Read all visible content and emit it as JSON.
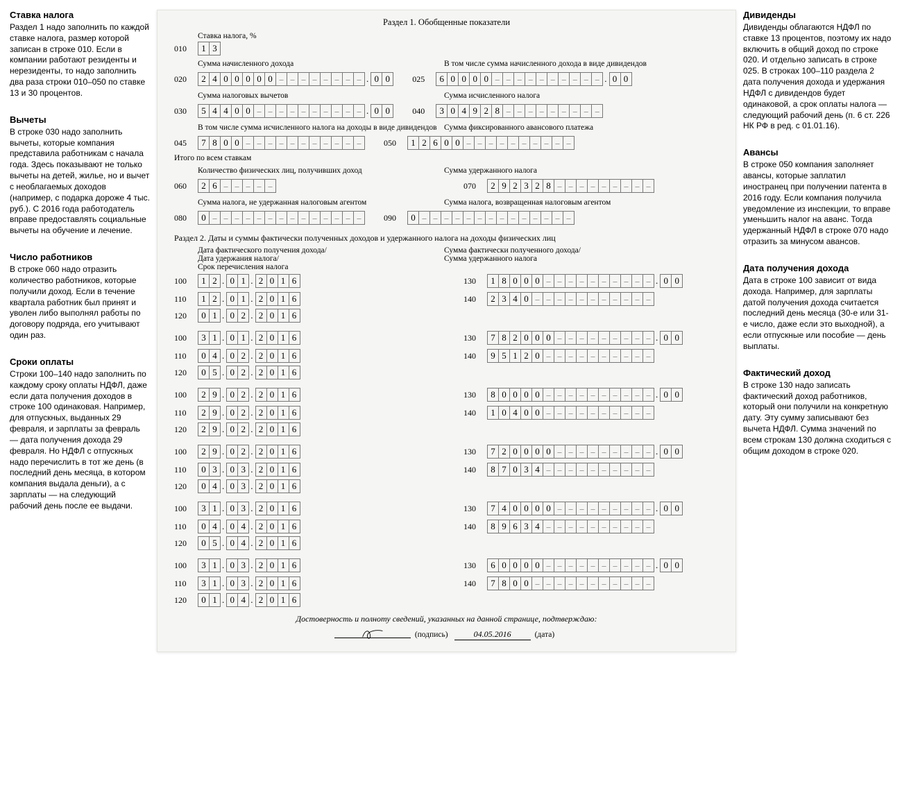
{
  "left_notes": [
    {
      "title": "Ставка налога",
      "body": "Раздел 1 надо заполнить по каждой ставке налога, размер которой записан в строке 010. Если в компании работают резиденты и нерезиденты, то надо заполнить два раза строки 010–050 по ставке 13 и 30 процентов."
    },
    {
      "title": "Вычеты",
      "body": "В строке 030 надо заполнить вычеты, которые компания представила работникам с начала года. Здесь показывают не только вычеты на детей, жилье, но и вычет с необлагаемых доходов (например, с подарка дороже 4 тыс. руб.). С 2016 года работодатель вправе предоставлять социальные вычеты на обучение и лечение."
    },
    {
      "title": "Число работников",
      "body": "В строке 060 надо отразить количество работников, которые получили доход. Если в течение квартала работник был принят и уволен либо выполнял работы по договору подряда, его учитывают один раз."
    },
    {
      "title": "Сроки оплаты",
      "body": "Строки 100–140 надо заполнить по каждому сроку оплаты НДФЛ, даже если дата получения доходов в строке 100 одинаковая. Например, для отпускных, выданных 29 февраля, и зарплаты за февраль — дата получения дохода 29 февраля. Но НДФЛ с отпускных надо перечислить в тот же день (в последний день месяца, в котором компания выдала деньги), а с зарплаты — на следующий рабочий день после ее выдачи."
    }
  ],
  "right_notes": [
    {
      "title": "Дивиденды",
      "body": "Дивиденды облагаются НДФЛ по ставке 13 процентов, поэтому их надо включить в общий доход по строке 020. И отдельно записать в строке 025. В строках 100–110 раздела 2 дата получения дохода и удержания НДФЛ с дивидендов будет одинаковой, а срок оплаты налога — следующий рабочий день (п. 6 ст. 226 НК РФ в ред. с 01.01.16)."
    },
    {
      "title": "Авансы",
      "body": "В строке 050 компания заполняет авансы, которые заплатил иностранец при получении патента в 2016 году. Если компания получила уведомление из инспекции, то вправе уменьшить налог на аванс. Тогда удержанный НДФЛ в строке 070 надо отразить за минусом авансов."
    },
    {
      "title": "Дата получения дохода",
      "body": "Дата в строке 100 зависит от вида дохода. Например, для зарплаты датой получения дохода считается последний день месяца (30-е или 31-е число, даже если это выходной), а если отпускные или пособие — день выплаты."
    },
    {
      "title": "Фактический доход",
      "body": "В строке 130 надо записать фактический доход работников, который они получили на конкретную дату. Эту сумму записывают без вычета НДФЛ. Сумма значений по всем строкам 130 должна сходиться с общим доходом в строке 020."
    }
  ],
  "section1_title": "Раздел 1. Обобщенные показатели",
  "rate_label": "Ставка налога, %",
  "l010_code": "010",
  "l010_cells": [
    "1",
    "3"
  ],
  "lbl_020": "Сумма начисленного дохода",
  "lbl_025": "В том числе сумма начисленного дохода в виде дивидендов",
  "l020_code": "020",
  "l020_int": [
    "2",
    "4",
    "0",
    "0",
    "0",
    "0",
    "0",
    "-",
    "-",
    "-",
    "-",
    "-",
    "-",
    "-",
    "-"
  ],
  "l020_frac": [
    "0",
    "0"
  ],
  "l025_code": "025",
  "l025_int": [
    "6",
    "0",
    "0",
    "0",
    "0",
    "-",
    "-",
    "-",
    "-",
    "-",
    "-",
    "-",
    "-",
    "-",
    "-"
  ],
  "l025_frac": [
    "0",
    "0"
  ],
  "lbl_030": "Сумма налоговых вычетов",
  "lbl_040": "Сумма исчисленного налога",
  "l030_code": "030",
  "l030_int": [
    "5",
    "4",
    "4",
    "0",
    "0",
    "-",
    "-",
    "-",
    "-",
    "-",
    "-",
    "-",
    "-",
    "-",
    "-"
  ],
  "l030_frac": [
    "0",
    "0"
  ],
  "l040_code": "040",
  "l040_int": [
    "3",
    "0",
    "4",
    "9",
    "2",
    "8",
    "-",
    "-",
    "-",
    "-",
    "-",
    "-",
    "-",
    "-",
    "-"
  ],
  "lbl_045": "В том числе сумма исчисленного налога на доходы в виде дивидендов",
  "lbl_050": "Сумма фиксированного авансового платежа",
  "l045_code": "045",
  "l045_int": [
    "7",
    "8",
    "0",
    "0",
    "-",
    "-",
    "-",
    "-",
    "-",
    "-",
    "-",
    "-",
    "-",
    "-",
    "-"
  ],
  "l050_code": "050",
  "l050_int": [
    "1",
    "2",
    "6",
    "0",
    "0",
    "-",
    "-",
    "-",
    "-",
    "-",
    "-",
    "-",
    "-",
    "-",
    "-"
  ],
  "totals_label": "Итого по всем ставкам",
  "lbl_060": "Количество физических лиц, получивших доход",
  "lbl_070": "Сумма удержанного налога",
  "l060_code": "060",
  "l060_int": [
    "2",
    "6",
    "-",
    "-",
    "-",
    "-",
    "-"
  ],
  "l070_code": "070",
  "l070_int": [
    "2",
    "9",
    "2",
    "3",
    "2",
    "8",
    "-",
    "-",
    "-",
    "-",
    "-",
    "-",
    "-",
    "-",
    "-"
  ],
  "lbl_080": "Сумма налога, не удержанная налоговым агентом",
  "lbl_090": "Сумма налога, возвращенная налоговым агентом",
  "l080_code": "080",
  "l080_int": [
    "0",
    "-",
    "-",
    "-",
    "-",
    "-",
    "-",
    "-",
    "-",
    "-",
    "-",
    "-",
    "-",
    "-",
    "-"
  ],
  "l090_code": "090",
  "l090_int": [
    "0",
    "-",
    "-",
    "-",
    "-",
    "-",
    "-",
    "-",
    "-",
    "-",
    "-",
    "-",
    "-",
    "-",
    "-"
  ],
  "section2_title": "Раздел 2. Даты и суммы фактически полученных доходов и удержанного налога на доходы физических лиц",
  "hdr_left_1": "Дата фактического получения дохода/",
  "hdr_left_2": "Дата удержания налога/",
  "hdr_left_3": "Срок перечисления налога",
  "hdr_right_1": "Сумма фактически полученного дохода/",
  "hdr_right_2": "Сумма удержанного налога",
  "blocks": [
    {
      "d100": [
        "1",
        "2",
        ".",
        "0",
        "1",
        ".",
        "2",
        "0",
        "1",
        "6"
      ],
      "d110": [
        "1",
        "2",
        ".",
        "0",
        "1",
        ".",
        "2",
        "0",
        "1",
        "6"
      ],
      "d120": [
        "0",
        "1",
        ".",
        "0",
        "2",
        ".",
        "2",
        "0",
        "1",
        "6"
      ],
      "a130_int": [
        "1",
        "8",
        "0",
        "0",
        "0",
        "-",
        "-",
        "-",
        "-",
        "-",
        "-",
        "-",
        "-",
        "-",
        "-"
      ],
      "a130_f": [
        "0",
        "0"
      ],
      "a140_int": [
        "2",
        "3",
        "4",
        "0",
        "-",
        "-",
        "-",
        "-",
        "-",
        "-",
        "-",
        "-",
        "-",
        "-",
        "-"
      ]
    },
    {
      "d100": [
        "3",
        "1",
        ".",
        "0",
        "1",
        ".",
        "2",
        "0",
        "1",
        "6"
      ],
      "d110": [
        "0",
        "4",
        ".",
        "0",
        "2",
        ".",
        "2",
        "0",
        "1",
        "6"
      ],
      "d120": [
        "0",
        "5",
        ".",
        "0",
        "2",
        ".",
        "2",
        "0",
        "1",
        "6"
      ],
      "a130_int": [
        "7",
        "8",
        "2",
        "0",
        "0",
        "0",
        "-",
        "-",
        "-",
        "-",
        "-",
        "-",
        "-",
        "-",
        "-"
      ],
      "a130_f": [
        "0",
        "0"
      ],
      "a140_int": [
        "9",
        "5",
        "1",
        "2",
        "0",
        "-",
        "-",
        "-",
        "-",
        "-",
        "-",
        "-",
        "-",
        "-",
        "-"
      ]
    },
    {
      "d100": [
        "2",
        "9",
        ".",
        "0",
        "2",
        ".",
        "2",
        "0",
        "1",
        "6"
      ],
      "d110": [
        "2",
        "9",
        ".",
        "0",
        "2",
        ".",
        "2",
        "0",
        "1",
        "6"
      ],
      "d120": [
        "2",
        "9",
        ".",
        "0",
        "2",
        ".",
        "2",
        "0",
        "1",
        "6"
      ],
      "a130_int": [
        "8",
        "0",
        "0",
        "0",
        "0",
        "-",
        "-",
        "-",
        "-",
        "-",
        "-",
        "-",
        "-",
        "-",
        "-"
      ],
      "a130_f": [
        "0",
        "0"
      ],
      "a140_int": [
        "1",
        "0",
        "4",
        "0",
        "0",
        "-",
        "-",
        "-",
        "-",
        "-",
        "-",
        "-",
        "-",
        "-",
        "-"
      ]
    },
    {
      "d100": [
        "2",
        "9",
        ".",
        "0",
        "2",
        ".",
        "2",
        "0",
        "1",
        "6"
      ],
      "d110": [
        "0",
        "3",
        ".",
        "0",
        "3",
        ".",
        "2",
        "0",
        "1",
        "6"
      ],
      "d120": [
        "0",
        "4",
        ".",
        "0",
        "3",
        ".",
        "2",
        "0",
        "1",
        "6"
      ],
      "a130_int": [
        "7",
        "2",
        "0",
        "0",
        "0",
        "0",
        "-",
        "-",
        "-",
        "-",
        "-",
        "-",
        "-",
        "-",
        "-"
      ],
      "a130_f": [
        "0",
        "0"
      ],
      "a140_int": [
        "8",
        "7",
        "0",
        "3",
        "4",
        "-",
        "-",
        "-",
        "-",
        "-",
        "-",
        "-",
        "-",
        "-",
        "-"
      ]
    },
    {
      "d100": [
        "3",
        "1",
        ".",
        "0",
        "3",
        ".",
        "2",
        "0",
        "1",
        "6"
      ],
      "d110": [
        "0",
        "4",
        ".",
        "0",
        "4",
        ".",
        "2",
        "0",
        "1",
        "6"
      ],
      "d120": [
        "0",
        "5",
        ".",
        "0",
        "4",
        ".",
        "2",
        "0",
        "1",
        "6"
      ],
      "a130_int": [
        "7",
        "4",
        "0",
        "0",
        "0",
        "0",
        "-",
        "-",
        "-",
        "-",
        "-",
        "-",
        "-",
        "-",
        "-"
      ],
      "a130_f": [
        "0",
        "0"
      ],
      "a140_int": [
        "8",
        "9",
        "6",
        "3",
        "4",
        "-",
        "-",
        "-",
        "-",
        "-",
        "-",
        "-",
        "-",
        "-",
        "-"
      ]
    },
    {
      "d100": [
        "3",
        "1",
        ".",
        "0",
        "3",
        ".",
        "2",
        "0",
        "1",
        "6"
      ],
      "d110": [
        "3",
        "1",
        ".",
        "0",
        "3",
        ".",
        "2",
        "0",
        "1",
        "6"
      ],
      "d120": [
        "0",
        "1",
        ".",
        "0",
        "4",
        ".",
        "2",
        "0",
        "1",
        "6"
      ],
      "a130_int": [
        "6",
        "0",
        "0",
        "0",
        "0",
        "-",
        "-",
        "-",
        "-",
        "-",
        "-",
        "-",
        "-",
        "-",
        "-"
      ],
      "a130_f": [
        "0",
        "0"
      ],
      "a140_int": [
        "7",
        "8",
        "0",
        "0",
        "-",
        "-",
        "-",
        "-",
        "-",
        "-",
        "-",
        "-",
        "-",
        "-",
        "-"
      ]
    }
  ],
  "codes": {
    "c100": "100",
    "c110": "110",
    "c120": "120",
    "c130": "130",
    "c140": "140"
  },
  "footer_text": "Достоверность и полноту сведений, указанных на данной странице, подтверждаю:",
  "sig_label": "(подпись)",
  "date_value": "04.05.2016",
  "date_label": "(дата)"
}
